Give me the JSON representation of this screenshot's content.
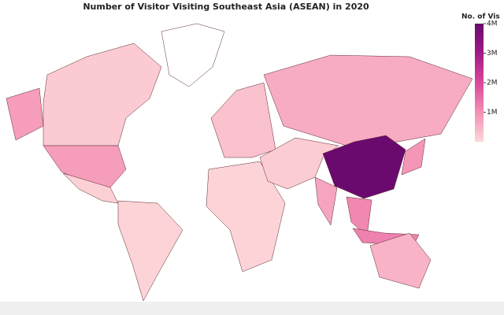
{
  "chart_data": {
    "type": "choropleth",
    "title": "Number of Visitor Visiting Southeast Asia (ASEAN) in 2020",
    "colorbar_title": "No. of Vis",
    "values": [
      180000,
      800000,
      80000,
      60000,
      300000,
      40000,
      600000,
      150000,
      4000000,
      700000,
      1100000,
      900000,
      1200000,
      500000
    ],
    "colorscale": [
      "#fcd7d8",
      "#f48fb5",
      "#d9489a",
      "#a01a88",
      "#6a0a6e"
    ],
    "zlim": [
      0,
      4000000
    ],
    "zticks": [
      {
        "value": 1000000,
        "label": "1M"
      },
      {
        "value": 2000000,
        "label": "2M"
      },
      {
        "value": 3000000,
        "label": "3M"
      },
      {
        "value": 4000000,
        "label": "4M"
      }
    ]
  }
}
